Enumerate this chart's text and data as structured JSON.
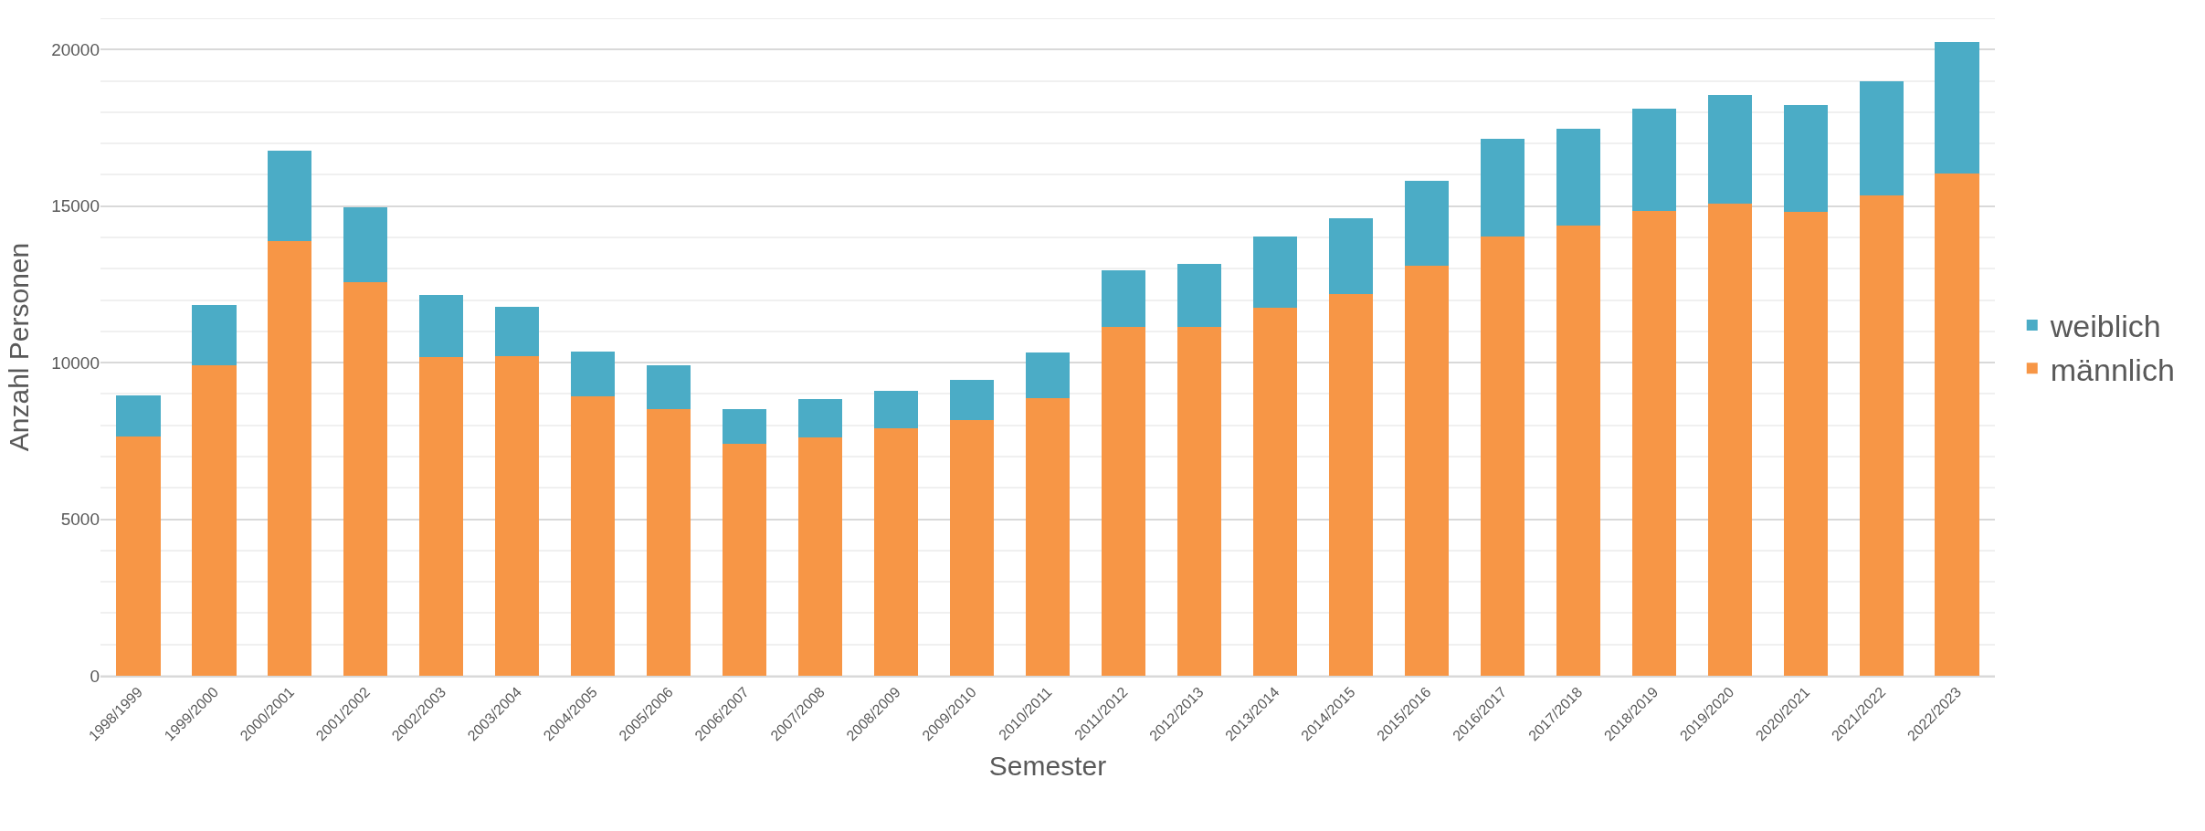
{
  "chart_data": {
    "type": "bar",
    "stacked": true,
    "xlabel": "Semester",
    "ylabel": "Anzahl Personen",
    "categories": [
      "1998/1999",
      "1999/2000",
      "2000/2001",
      "2001/2002",
      "2002/2003",
      "2003/2004",
      "2004/2005",
      "2005/2006",
      "2006/2007",
      "2007/2008",
      "2008/2009",
      "2009/2010",
      "2010/2011",
      "2011/2012",
      "2012/2013",
      "2013/2014",
      "2014/2015",
      "2015/2016",
      "2016/2017",
      "2017/2018",
      "2018/2019",
      "2019/2020",
      "2020/2021",
      "2021/2022",
      "2022/2023"
    ],
    "series": [
      {
        "name": "männlich",
        "color": "#f79646",
        "values": [
          7650,
          9920,
          13890,
          12570,
          10190,
          10210,
          8920,
          8520,
          7400,
          7620,
          7890,
          8170,
          8870,
          11150,
          11150,
          11760,
          12190,
          13090,
          14020,
          14390,
          14850,
          15080,
          14830,
          15330,
          16030
        ]
      },
      {
        "name": "weiblich",
        "color": "#4bacc6",
        "values": [
          1290,
          1910,
          2890,
          2390,
          1970,
          1580,
          1440,
          1400,
          1120,
          1210,
          1220,
          1290,
          1450,
          1810,
          2010,
          2260,
          2430,
          2730,
          3120,
          3070,
          3260,
          3470,
          3410,
          3650,
          4200
        ]
      }
    ],
    "ylim": [
      0,
      21000
    ],
    "yticks": [
      0,
      5000,
      10000,
      15000,
      20000,
      {
        "value": 21000,
        "label": null
      }
    ],
    "grid": "y",
    "legend": "right"
  }
}
